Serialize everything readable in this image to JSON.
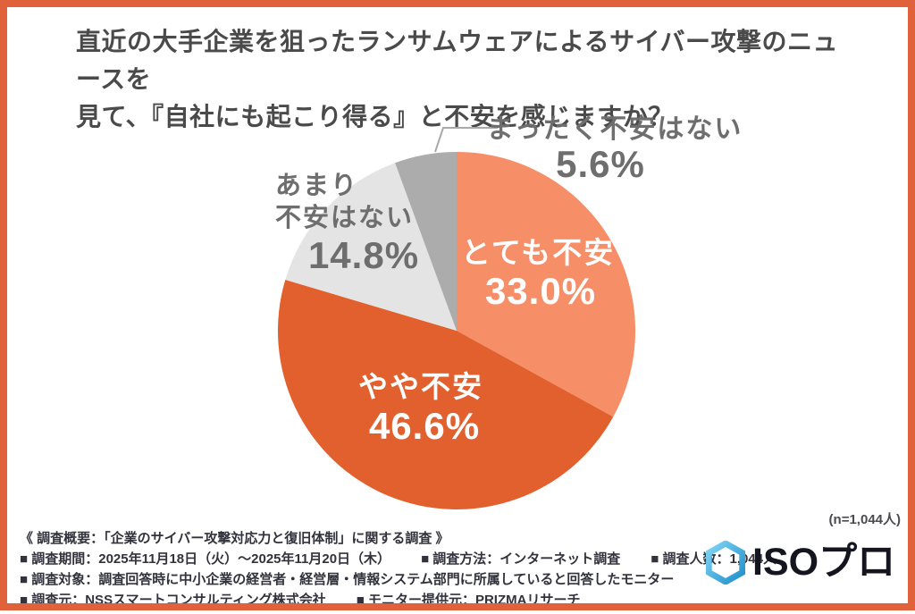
{
  "title": {
    "line1": "直近の大手企業を狙ったランサムウェアによるサイバー攻撃のニュースを",
    "line2": "見て、『自社にも起こり得る』と不安を感じますか？"
  },
  "chart_data": {
    "type": "pie",
    "title": "直近の大手企業を狙ったランサムウェアによるサイバー攻撃のニュースを見て、『自社にも起こり得る』と不安を感じますか？",
    "n": 1044,
    "n_label": "(n=1,044人)",
    "start_angle_deg": 0,
    "direction": "clockwise",
    "legend_position": "labels-on-chart",
    "slices": [
      {
        "label": "とても不安",
        "value": 33.0,
        "display_value": "33.0%",
        "color": "#F68E68",
        "text_color": "#FFFFFF",
        "label_placement": "inside"
      },
      {
        "label": "やや不安",
        "value": 46.6,
        "display_value": "46.6%",
        "color": "#E2602E",
        "text_color": "#FFFFFF",
        "label_placement": "inside"
      },
      {
        "label": "あまり不安はない",
        "label_lines": [
          "あまり",
          "不安はない"
        ],
        "value": 14.8,
        "display_value": "14.8%",
        "color": "#E4E4E4",
        "text_color": "#6E6E6E",
        "label_placement": "outside"
      },
      {
        "label": "まったく不安はない",
        "value": 5.6,
        "display_value": "5.6%",
        "color": "#ACACAC",
        "text_color": "#6E6E6E",
        "label_placement": "outside-callout"
      }
    ]
  },
  "footer": {
    "overview": "《 調査概要：「企業のサイバー攻撃対応力と復旧体制」に関する調査 》",
    "line2": [
      "■ 調査期間：2025年11月18日（火）～2025年11月20日（木）",
      "■ 調査方法：インターネット調査",
      "■ 調査人数：1,044人"
    ],
    "line3": "■ 調査対象：調査回答時に中小企業の経営者・経営層・情報システム部門に所属していると回答したモニター",
    "line4": [
      "■ 調査元：NSSスマートコンサルティング株式会社",
      "■ モニター提供元：PRIZMAリサーチ"
    ]
  },
  "logo": {
    "text": "ISOプロ",
    "icon": "hexagon-icon"
  },
  "colors": {
    "border": "#E0613A",
    "title_text": "#4A4A4A",
    "label_gray": "#6E6E6E",
    "footer_text": "#32323C",
    "logo_navy": "#15151F",
    "leader_line": "#A9A9A9"
  }
}
